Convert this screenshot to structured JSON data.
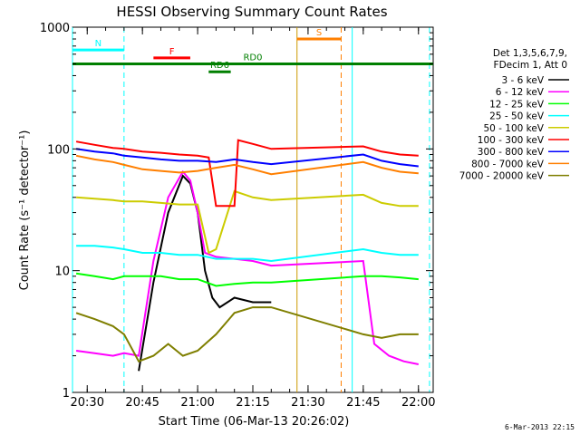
{
  "chart_data": {
    "type": "line",
    "title": "HESSI Observing Summary Count Rates",
    "xlabel": "Start Time (06-Mar-13 20:26:02)",
    "ylabel": "Count Rate (s⁻¹ detector⁻¹)",
    "y_scale": "log",
    "ylim": [
      1,
      1000
    ],
    "xlim": [
      "20:26",
      "22:04"
    ],
    "x_ticks": [
      "20:30",
      "20:45",
      "21:00",
      "21:15",
      "21:30",
      "21:45",
      "22:00"
    ],
    "y_ticks": [
      "1",
      "10",
      "100",
      "1000"
    ],
    "grid": false,
    "legend_position": "right",
    "legend_header": [
      "Det 1,3,5,6,7,9,",
      "FDecim 1, Att 0"
    ],
    "series": [
      {
        "name": "3 - 6 keV",
        "color": "#000000",
        "x": [
          "20:44",
          "20:48",
          "20:52",
          "20:56",
          "20:58",
          "21:00",
          "21:02",
          "21:04",
          "21:06",
          "21:10",
          "21:15",
          "21:20"
        ],
        "values": [
          1.5,
          8,
          30,
          60,
          52,
          30,
          10,
          6,
          5,
          6,
          5.5,
          5.5
        ]
      },
      {
        "name": "6 - 12 keV",
        "color": "#ff00ff",
        "x": [
          "20:27",
          "20:32",
          "20:37",
          "20:40",
          "20:44",
          "20:48",
          "20:52",
          "20:56",
          "20:58",
          "21:00",
          "21:02",
          "21:05",
          "21:10",
          "21:15",
          "21:20",
          "21:45",
          "21:48",
          "21:52",
          "21:56",
          "22:00"
        ],
        "values": [
          2.2,
          2.1,
          2.0,
          2.1,
          2.0,
          12,
          40,
          65,
          55,
          30,
          14,
          13,
          12.5,
          12,
          11,
          12,
          2.5,
          2.0,
          1.8,
          1.7
        ]
      },
      {
        "name": "12 - 25 keV",
        "color": "#00ff00",
        "x": [
          "20:27",
          "20:32",
          "20:37",
          "20:40",
          "20:45",
          "20:50",
          "20:55",
          "21:00",
          "21:05",
          "21:10",
          "21:15",
          "21:20",
          "21:45",
          "21:50",
          "21:55",
          "22:00"
        ],
        "values": [
          9.5,
          9,
          8.5,
          9,
          9,
          9,
          8.5,
          8.5,
          7.5,
          7.8,
          8,
          8,
          9,
          9,
          8.8,
          8.5
        ]
      },
      {
        "name": "25 - 50 keV",
        "color": "#00ffff",
        "x": [
          "20:27",
          "20:32",
          "20:37",
          "20:40",
          "20:45",
          "20:50",
          "20:55",
          "21:00",
          "21:05",
          "21:10",
          "21:15",
          "21:20",
          "21:45",
          "21:50",
          "21:55",
          "22:00"
        ],
        "values": [
          16,
          16,
          15.5,
          15,
          14,
          14,
          13.5,
          13.5,
          12.5,
          12.5,
          12.5,
          12,
          15,
          14,
          13.5,
          13.5
        ]
      },
      {
        "name": "50 - 100 keV",
        "color": "#cccc00",
        "x": [
          "20:27",
          "20:32",
          "20:37",
          "20:40",
          "20:45",
          "20:50",
          "20:55",
          "21:00",
          "21:03",
          "21:05",
          "21:10",
          "21:15",
          "21:20",
          "21:45",
          "21:50",
          "21:55",
          "22:00"
        ],
        "values": [
          40,
          39,
          38,
          37,
          37,
          36,
          35,
          35,
          14,
          15,
          45,
          40,
          38,
          42,
          36,
          34,
          34
        ]
      },
      {
        "name": "100 - 300 keV",
        "color": "#ff0000",
        "x": [
          "20:27",
          "20:32",
          "20:37",
          "20:40",
          "20:45",
          "20:50",
          "20:55",
          "21:00",
          "21:03",
          "21:05",
          "21:10",
          "21:11",
          "21:15",
          "21:20",
          "21:45",
          "21:50",
          "21:55",
          "22:00"
        ],
        "values": [
          115,
          108,
          102,
          100,
          95,
          93,
          90,
          88,
          85,
          34,
          34,
          118,
          110,
          100,
          105,
          95,
          90,
          88
        ]
      },
      {
        "name": "300 - 800 keV",
        "color": "#0000ff",
        "x": [
          "20:27",
          "20:32",
          "20:37",
          "20:40",
          "20:45",
          "20:50",
          "20:55",
          "21:00",
          "21:05",
          "21:10",
          "21:15",
          "21:20",
          "21:45",
          "21:50",
          "21:55",
          "22:00"
        ],
        "values": [
          100,
          95,
          92,
          88,
          85,
          82,
          80,
          80,
          78,
          82,
          78,
          75,
          90,
          80,
          75,
          72
        ]
      },
      {
        "name": "800 - 7000 keV",
        "color": "#ff7f00",
        "x": [
          "20:27",
          "20:32",
          "20:37",
          "20:40",
          "20:45",
          "20:50",
          "20:55",
          "21:00",
          "21:05",
          "21:10",
          "21:15",
          "21:20",
          "21:45",
          "21:50",
          "21:55",
          "22:00"
        ],
        "values": [
          88,
          82,
          78,
          74,
          68,
          66,
          64,
          66,
          70,
          74,
          68,
          62,
          78,
          70,
          65,
          63
        ]
      },
      {
        "name": "7000 - 20000 keV",
        "color": "#7f7f00",
        "x": [
          "20:27",
          "20:32",
          "20:37",
          "20:40",
          "20:44",
          "20:48",
          "20:52",
          "20:56",
          "21:00",
          "21:05",
          "21:10",
          "21:15",
          "21:20",
          "21:45",
          "21:50",
          "21:55",
          "22:00"
        ],
        "values": [
          4.5,
          4,
          3.5,
          3,
          1.8,
          2.0,
          2.5,
          2.0,
          2.2,
          3,
          4.5,
          5,
          5,
          3,
          2.8,
          3,
          3
        ]
      }
    ],
    "annotations": [
      {
        "label": "N",
        "color": "#00ffff",
        "x_start": "20:26",
        "x_end": "20:40",
        "y": 650
      },
      {
        "label": "F",
        "color": "#ff0000",
        "x_start": "20:48",
        "x_end": "20:58",
        "y": 560
      },
      {
        "label": "RD0",
        "color": "#007f00",
        "x_start": "20:26",
        "x_end": "22:04",
        "y": 500
      },
      {
        "label": "RD6",
        "color": "#007f00",
        "x_start": "21:03",
        "x_end": "21:09",
        "y": 430
      },
      {
        "label": "S",
        "color": "#ff7f00",
        "x_start": "21:27",
        "x_end": "21:39",
        "y": 800
      }
    ],
    "vlines": [
      {
        "x": "20:26",
        "color": "#00ffff",
        "style": "solid"
      },
      {
        "x": "20:40",
        "color": "#00ffff",
        "style": "dashed"
      },
      {
        "x": "21:27",
        "color": "#cc9900",
        "style": "solid"
      },
      {
        "x": "21:39",
        "color": "#ff7f00",
        "style": "dashed"
      },
      {
        "x": "21:42",
        "color": "#00ffff",
        "style": "solid"
      },
      {
        "x": "22:03",
        "color": "#00ffff",
        "style": "dashed"
      }
    ]
  },
  "footer": "6-Mar-2013 22:15"
}
